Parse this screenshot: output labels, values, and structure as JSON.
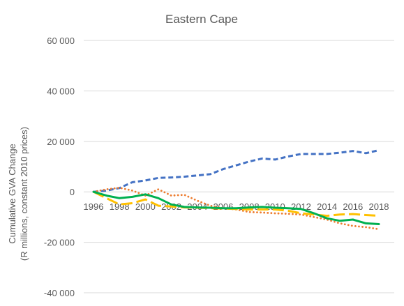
{
  "chart_data": {
    "type": "line",
    "title": "Eastern Cape",
    "ylabel_line1": "Cumulative GVA Change",
    "ylabel_line2": "(R millions, constant 2010 prices)",
    "xlabel": "",
    "ylim": [
      -40000,
      60000
    ],
    "y_ticks": [
      60000,
      40000,
      20000,
      0,
      -20000,
      -40000
    ],
    "y_tick_labels": [
      "60 000",
      "40 000",
      "20 000",
      "0",
      "-20 000",
      "-40 000"
    ],
    "x": [
      1996,
      1997,
      1998,
      1999,
      2000,
      2001,
      2002,
      2003,
      2004,
      2005,
      2006,
      2007,
      2008,
      2009,
      2010,
      2011,
      2012,
      2013,
      2014,
      2015,
      2016,
      2017,
      2018
    ],
    "x_tick_labels": [
      "1996",
      "1998",
      "2000",
      "2002",
      "2004",
      "2006",
      "2008",
      "2010",
      "2012",
      "2014",
      "2016",
      "2018"
    ],
    "grid": true,
    "legend": "none",
    "series": [
      {
        "color": "#4472c4",
        "style": "dashed",
        "values": [
          0,
          500,
          1500,
          3800,
          4500,
          5500,
          5700,
          6000,
          6500,
          7000,
          9000,
          10500,
          12000,
          13200,
          12800,
          14000,
          15000,
          15000,
          15000,
          15500,
          16200,
          15300,
          16500
        ]
      },
      {
        "color": "#ed7d31",
        "style": "dotted",
        "values": [
          0,
          1000,
          1600,
          500,
          -1500,
          1000,
          -1500,
          -1200,
          -3500,
          -5500,
          -6500,
          -7000,
          -8000,
          -8200,
          -8500,
          -8700,
          -9000,
          -10000,
          -11000,
          -12500,
          -13500,
          -14000,
          -14800
        ]
      },
      {
        "color": "#ffc000",
        "style": "long-dash",
        "values": [
          0,
          -2500,
          -5000,
          -4500,
          -3000,
          -5500,
          -5800,
          -6200,
          -6300,
          -6500,
          -6600,
          -6800,
          -7000,
          -7000,
          -7000,
          -7500,
          -8500,
          -9000,
          -9500,
          -9000,
          -8800,
          -9200,
          -9500
        ]
      },
      {
        "color": "#00b050",
        "style": "solid",
        "values": [
          0,
          -1500,
          -2500,
          -2000,
          -1000,
          -2500,
          -5000,
          -6000,
          -6200,
          -6300,
          -6500,
          -6500,
          -6200,
          -6000,
          -6300,
          -6500,
          -6800,
          -8500,
          -10500,
          -11500,
          -11000,
          -12500,
          -12800
        ]
      }
    ]
  }
}
